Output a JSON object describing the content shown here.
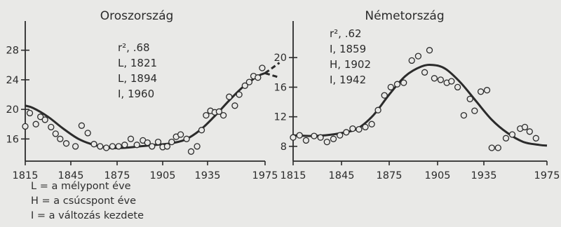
{
  "chart_data": [
    {
      "type": "scatter",
      "title": "Oroszország",
      "annotations": [
        "r², .68",
        "L, 1821",
        "L, 1894",
        "I, 1960"
      ],
      "x_ticks": [
        1815,
        1845,
        1875,
        1905,
        1935,
        1975
      ],
      "y_ticks": [
        16,
        20,
        24,
        28
      ],
      "xlim": [
        1815,
        1985
      ],
      "ylim": [
        13,
        31
      ],
      "grid": false,
      "points": [
        [
          1815,
          17.7
        ],
        [
          1818,
          19.5
        ],
        [
          1822,
          18.0
        ],
        [
          1825,
          19.0
        ],
        [
          1828,
          18.6
        ],
        [
          1832,
          17.6
        ],
        [
          1835,
          16.7
        ],
        [
          1838,
          16.0
        ],
        [
          1842,
          15.4
        ],
        [
          1848,
          15.0
        ],
        [
          1852,
          17.8
        ],
        [
          1856,
          16.8
        ],
        [
          1860,
          15.3
        ],
        [
          1864,
          15.0
        ],
        [
          1868,
          14.8
        ],
        [
          1872,
          15.0
        ],
        [
          1876,
          15.0
        ],
        [
          1880,
          15.2
        ],
        [
          1884,
          16.0
        ],
        [
          1888,
          15.2
        ],
        [
          1892,
          15.8
        ],
        [
          1895,
          15.5
        ],
        [
          1898,
          15.0
        ],
        [
          1902,
          15.6
        ],
        [
          1905,
          14.9
        ],
        [
          1908,
          15.0
        ],
        [
          1911,
          15.6
        ],
        [
          1914,
          16.3
        ],
        [
          1917,
          16.6
        ],
        [
          1921,
          16.0
        ],
        [
          1924,
          14.3
        ],
        [
          1928,
          15.0
        ],
        [
          1931,
          17.2
        ],
        [
          1934,
          19.2
        ],
        [
          1937,
          19.8
        ],
        [
          1940,
          19.6
        ],
        [
          1943,
          19.7
        ],
        [
          1946,
          19.2
        ],
        [
          1950,
          21.7
        ],
        [
          1954,
          20.5
        ],
        [
          1957,
          22.0
        ],
        [
          1961,
          23.2
        ],
        [
          1964,
          23.7
        ],
        [
          1967,
          24.5
        ],
        [
          1970,
          24.3
        ],
        [
          1973,
          25.6
        ]
      ],
      "fit": {
        "x": [
          1815,
          1820,
          1830,
          1840,
          1850,
          1860,
          1870,
          1880,
          1890,
          1900,
          1910,
          1920,
          1930,
          1940,
          1950,
          1960,
          1970,
          1975
        ],
        "y": [
          20.5,
          20.2,
          19.0,
          17.4,
          16.0,
          15.2,
          14.8,
          14.8,
          15.0,
          15.2,
          15.4,
          15.9,
          17.2,
          19.1,
          21.2,
          23.1,
          24.5,
          24.9
        ]
      },
      "projection": {
        "x": [
          1975,
          1980,
          1985
        ],
        "y": [
          [
            24.9,
            25.6,
            26.3
          ],
          [
            24.9,
            24.6,
            24.3
          ]
        ]
      }
    },
    {
      "type": "scatter",
      "title": "Németország",
      "annotations": [
        "r², .62",
        "I, 1859",
        "H, 1902",
        "I, 1942"
      ],
      "x_ticks": [
        1815,
        1845,
        1875,
        1905,
        1935,
        1975
      ],
      "y_ticks": [
        8,
        12,
        16,
        20
      ],
      "xlim": [
        1815,
        1983
      ],
      "ylim": [
        6,
        24
      ],
      "grid": false,
      "points": [
        [
          1815,
          9.2
        ],
        [
          1819,
          9.5
        ],
        [
          1823,
          8.8
        ],
        [
          1828,
          9.4
        ],
        [
          1832,
          9.2
        ],
        [
          1836,
          8.6
        ],
        [
          1840,
          9.0
        ],
        [
          1844,
          9.5
        ],
        [
          1848,
          9.9
        ],
        [
          1852,
          10.4
        ],
        [
          1856,
          10.3
        ],
        [
          1860,
          10.6
        ],
        [
          1864,
          11.0
        ],
        [
          1868,
          12.9
        ],
        [
          1872,
          14.9
        ],
        [
          1876,
          16.0
        ],
        [
          1880,
          16.4
        ],
        [
          1884,
          16.6
        ],
        [
          1889,
          19.6
        ],
        [
          1893,
          20.2
        ],
        [
          1897,
          18.0
        ],
        [
          1900,
          21.0
        ],
        [
          1903,
          17.2
        ],
        [
          1907,
          17.0
        ],
        [
          1911,
          16.6
        ],
        [
          1914,
          16.8
        ],
        [
          1918,
          16.0
        ],
        [
          1922,
          12.2
        ],
        [
          1926,
          14.4
        ],
        [
          1929,
          12.8
        ],
        [
          1933,
          15.4
        ],
        [
          1937,
          15.6
        ],
        [
          1940,
          7.8
        ],
        [
          1944,
          7.8
        ],
        [
          1949,
          9.1
        ],
        [
          1953,
          9.6
        ],
        [
          1958,
          10.4
        ],
        [
          1961,
          10.6
        ],
        [
          1964,
          10.0
        ],
        [
          1968,
          9.1
        ]
      ],
      "fit": {
        "x": [
          1815,
          1825,
          1835,
          1845,
          1855,
          1865,
          1875,
          1885,
          1895,
          1902,
          1910,
          1920,
          1930,
          1940,
          1950,
          1960,
          1970,
          1975
        ],
        "y": [
          9.5,
          9.4,
          9.5,
          9.8,
          10.4,
          12.2,
          15.0,
          17.5,
          18.8,
          19.0,
          18.5,
          16.6,
          14.1,
          11.6,
          9.8,
          8.6,
          8.2,
          8.1
        ]
      }
    }
  ],
  "legend": [
    "L = a mélypont éve",
    "H = a csúcspont éve",
    "I = a változás kezdete"
  ],
  "colors": {
    "background": "#e9e9e7",
    "ink": "#2b2b2b"
  }
}
